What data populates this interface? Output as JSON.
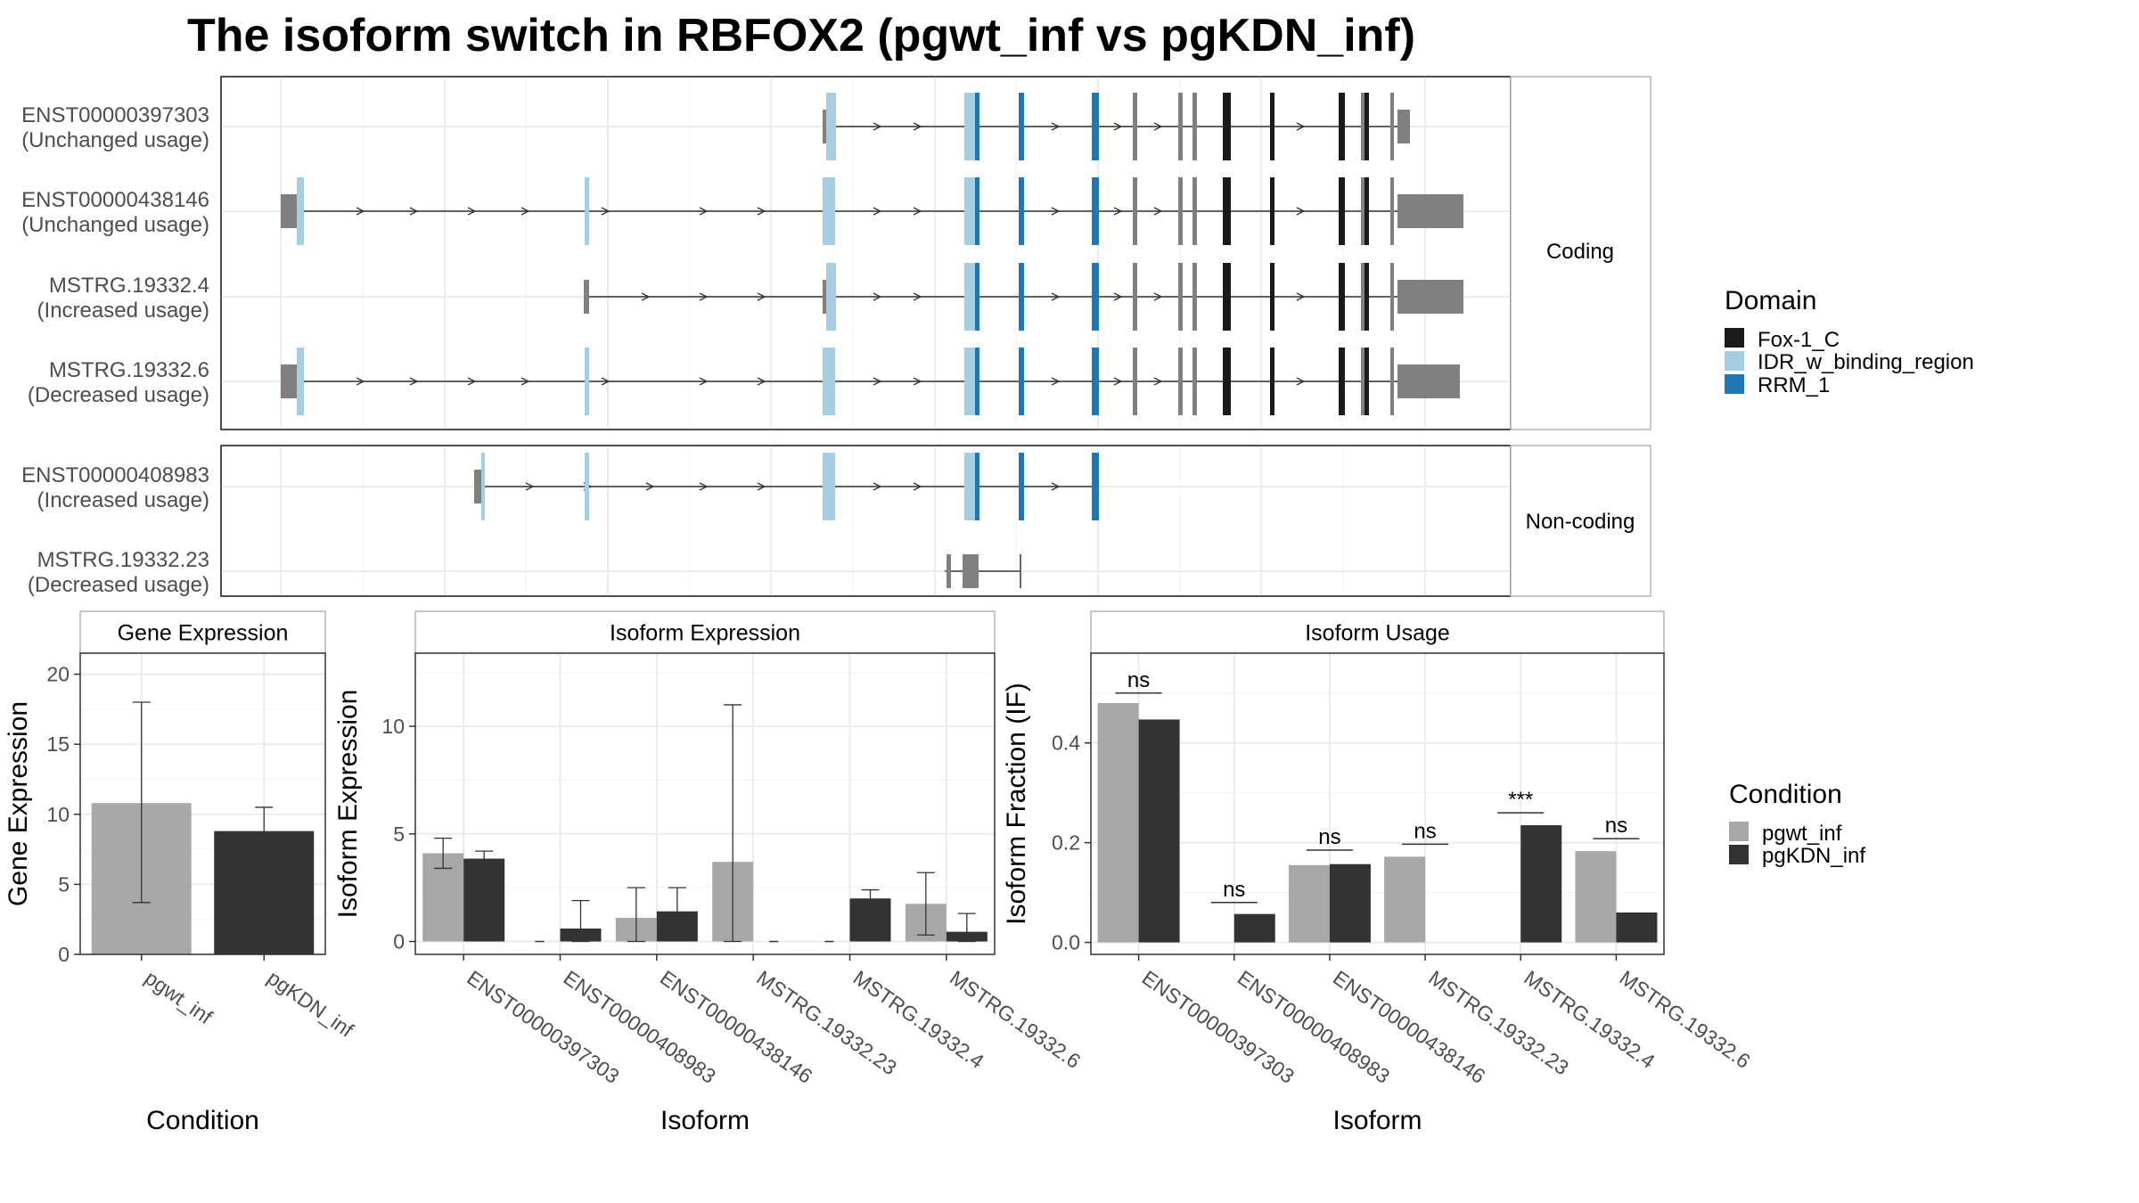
{
  "title": "The isoform switch in RBFOX2 (pgwt_inf vs pgKDN_inf)",
  "colors": {
    "fox": "#1a1a1a",
    "idr": "#a6cee3",
    "rrm": "#1f78b4",
    "utr": "#808080",
    "wt": "#a8a8a8",
    "kd": "#333333",
    "grid": "#ebebeb",
    "panel_border": "#333333",
    "strip_border": "#b3b3b3"
  },
  "domain_legend": {
    "title": "Domain",
    "items": [
      {
        "label": "Fox-1_C",
        "color": "#1a1a1a"
      },
      {
        "label": "IDR_w_binding_region",
        "color": "#a6cee3"
      },
      {
        "label": "RRM_1",
        "color": "#1f78b4"
      }
    ]
  },
  "condition_legend": {
    "title": "Condition",
    "items": [
      {
        "label": "pgwt_inf",
        "color": "#a8a8a8"
      },
      {
        "label": "pgKDN_inf",
        "color": "#333333"
      }
    ]
  },
  "chart_data": [
    {
      "type": "gene-structure",
      "panels": [
        {
          "strip": "Coding",
          "transcripts": [
            {
              "id": "ENST00000397303",
              "usage": "(Unchanged usage)"
            },
            {
              "id": "ENST00000438146",
              "usage": "(Unchanged usage)"
            },
            {
              "id": "MSTRG.19332.4",
              "usage": "(Increased usage)"
            },
            {
              "id": "MSTRG.19332.6",
              "usage": "(Decreased usage)"
            }
          ]
        },
        {
          "strip": "Non-coding",
          "transcripts": [
            {
              "id": "ENST00000408983",
              "usage": "(Increased usage)"
            },
            {
              "id": "MSTRG.19332.23",
              "usage": "(Decreased usage)"
            }
          ]
        }
      ]
    },
    {
      "type": "bar",
      "strip": "Gene Expression",
      "xlabel": "Condition",
      "ylabel": "Gene Expression",
      "categories": [
        "pgwt_inf",
        "pgKDN_inf"
      ],
      "values": [
        10.8,
        8.8
      ],
      "err_low": [
        3.7,
        7.0
      ],
      "err_high": [
        18.0,
        10.5
      ],
      "ylim": [
        0,
        21.5
      ],
      "yticks": [
        0,
        5,
        10,
        15,
        20
      ]
    },
    {
      "type": "bar",
      "strip": "Isoform Expression",
      "xlabel": "Isoform",
      "ylabel": "Isoform Expression",
      "categories": [
        "ENST00000397303",
        "ENST00000408983",
        "ENST00000438146",
        "MSTRG.19332.23",
        "MSTRG.19332.4",
        "MSTRG.19332.6"
      ],
      "series": [
        {
          "name": "pgwt_inf",
          "values": [
            4.1,
            0.0,
            1.1,
            3.7,
            0.0,
            1.75
          ],
          "err_low": [
            3.4,
            0.0,
            0.0,
            0.0,
            0.0,
            0.3
          ],
          "err_high": [
            4.8,
            0.0,
            2.5,
            11.0,
            0.0,
            3.2
          ]
        },
        {
          "name": "pgKDN_inf",
          "values": [
            3.85,
            0.6,
            1.4,
            0.0,
            2.0,
            0.45
          ],
          "err_low": [
            3.4,
            0.0,
            0.5,
            0.0,
            1.6,
            0.0
          ],
          "err_high": [
            4.2,
            1.9,
            2.5,
            0.0,
            2.4,
            1.3
          ]
        }
      ],
      "ylim": [
        -0.6,
        13.4
      ],
      "yticks": [
        0,
        5,
        10
      ]
    },
    {
      "type": "bar",
      "strip": "Isoform Usage",
      "xlabel": "Isoform",
      "ylabel": "Isoform Fraction (IF)",
      "categories": [
        "ENST00000397303",
        "ENST00000408983",
        "ENST00000438146",
        "MSTRG.19332.23",
        "MSTRG.19332.4",
        "MSTRG.19332.6"
      ],
      "series": [
        {
          "name": "pgwt_inf",
          "values": [
            0.48,
            0.0,
            0.155,
            0.172,
            0.0,
            0.183
          ]
        },
        {
          "name": "pgKDN_inf",
          "values": [
            0.447,
            0.057,
            0.157,
            0.0,
            0.235,
            0.06
          ]
        }
      ],
      "significance": [
        "ns",
        "ns",
        "ns",
        "ns",
        "***",
        "ns"
      ],
      "sig_y": [
        0.5,
        0.08,
        0.185,
        0.197,
        0.26,
        0.208
      ],
      "ylim": [
        -0.024,
        0.58
      ],
      "yticks": [
        0.0,
        0.2,
        0.4
      ],
      "ytick_labels": [
        "0.0",
        "0.2",
        "0.4"
      ]
    }
  ]
}
